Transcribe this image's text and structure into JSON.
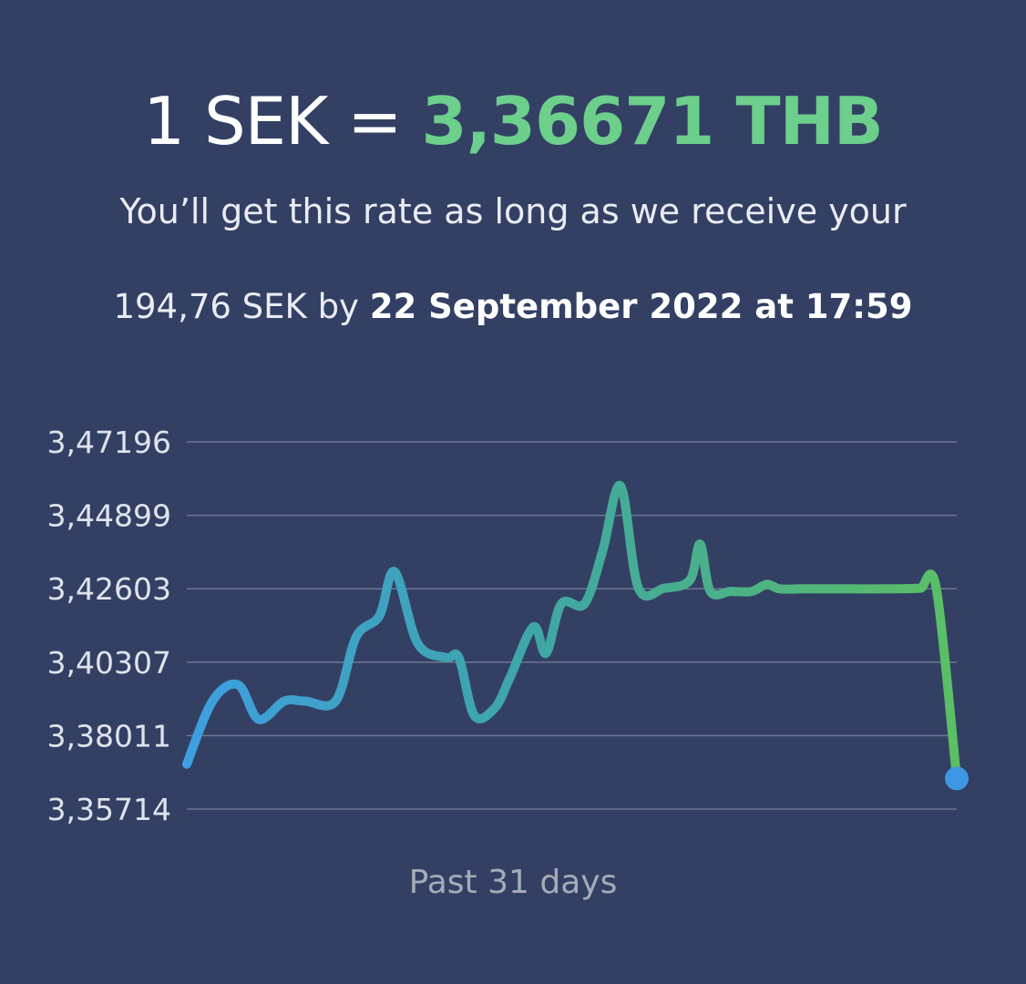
{
  "header": {
    "rate_prefix": "1 SEK = ",
    "rate_value": "3,36671 THB",
    "info_line_1": "You’ll get this rate as long as we receive your",
    "info_amount": "194,76 SEK by ",
    "info_deadline": "22 September 2022 at 17:59"
  },
  "colors": {
    "background": "#334064",
    "accent": "#6ccf8c",
    "line_start": "#3d9fe0",
    "line_mid": "#3fa6a6",
    "line_end": "#5bbf64",
    "endpoint": "#3d97e3",
    "gridline": "#6d7790"
  },
  "chart_data": {
    "type": "line",
    "xlabel": "Past 31 days",
    "yticks": [
      "3,47196",
      "3,44899",
      "3,42603",
      "3,40307",
      "3,38011",
      "3,35714"
    ],
    "ylim": [
      3.35714,
      3.47196
    ],
    "grid": true,
    "x": [
      0,
      1.0,
      2.0,
      2.8,
      3.8,
      4.6,
      5.8,
      6.6,
      7.5,
      8.1,
      9.0,
      10.1,
      10.6,
      11.2,
      12.0,
      12.6,
      13.5,
      14.0,
      14.6,
      15.5,
      16.2,
      16.9,
      17.6,
      18.6,
      19.6,
      20.0,
      20.4,
      21.2,
      22.0,
      22.6,
      23.1,
      24.0,
      25.0,
      25.6,
      26.0,
      27.1,
      28.2,
      28.6,
      29.2,
      30.0
    ],
    "series": [
      {
        "values": [
          3.3712,
          3.3909,
          3.396,
          3.3852,
          3.3909,
          3.3909,
          3.3909,
          3.411,
          3.4175,
          3.4314,
          3.4089,
          3.4045,
          3.4045,
          3.3864,
          3.3887,
          3.3984,
          3.4141,
          3.4059,
          3.4214,
          3.4214,
          3.4378,
          3.4582,
          3.4262,
          3.4262,
          3.4287,
          3.44,
          3.4252,
          3.4252,
          3.4252,
          3.4274,
          3.426,
          3.426,
          3.426,
          3.426,
          3.426,
          3.426,
          3.4261,
          3.4262,
          3.4262,
          3.36671
        ]
      }
    ]
  }
}
